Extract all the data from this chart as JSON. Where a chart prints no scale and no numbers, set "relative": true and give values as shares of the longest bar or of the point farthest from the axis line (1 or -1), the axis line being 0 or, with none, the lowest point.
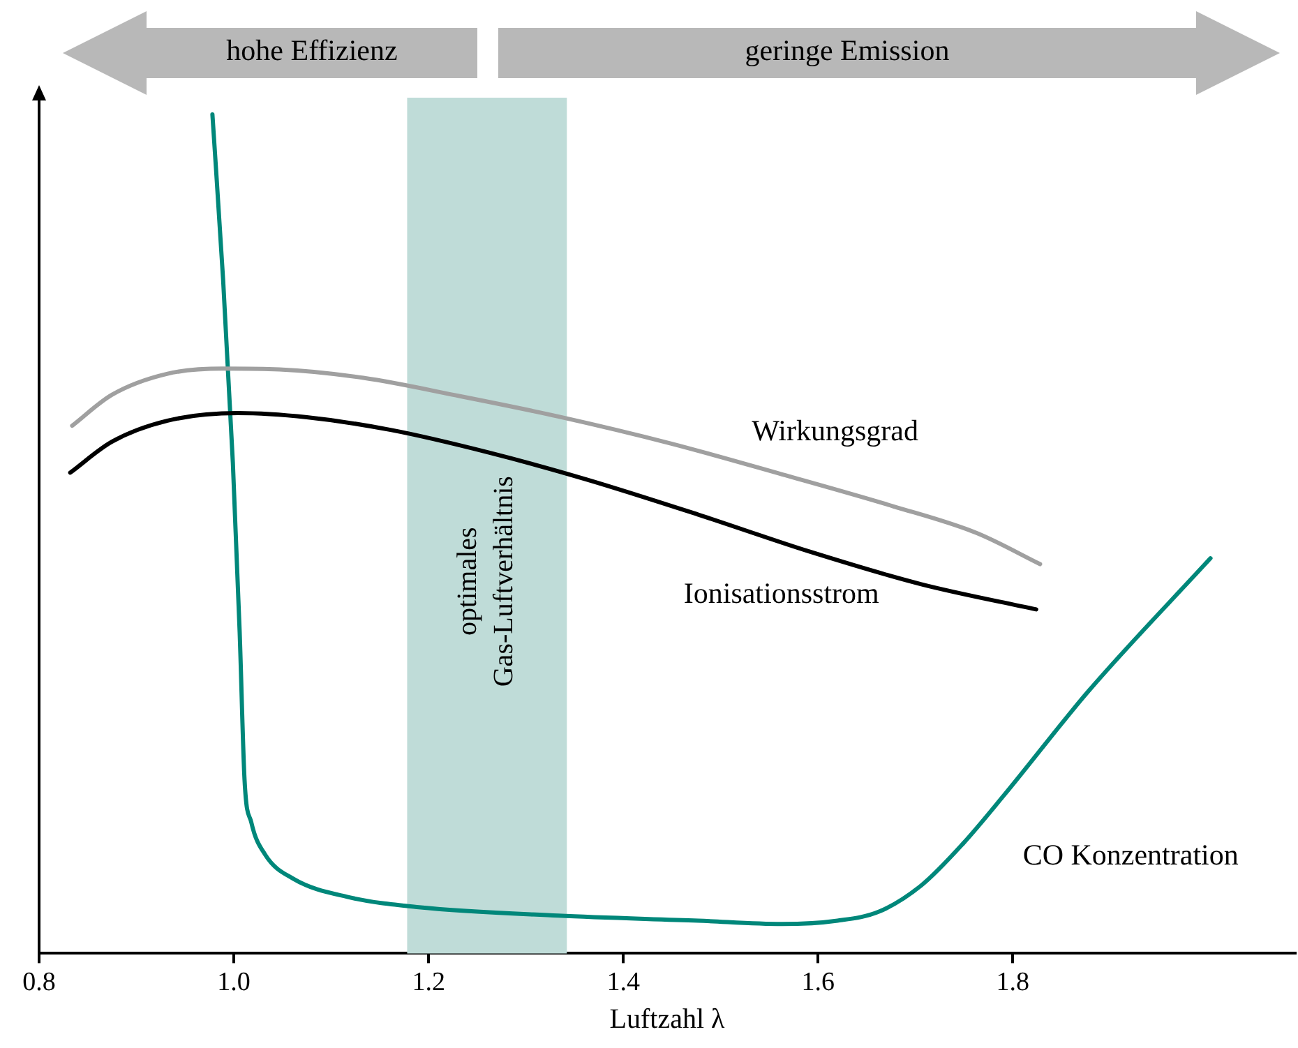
{
  "chart_data": {
    "type": "line",
    "relative": true,
    "xlabel": "Luftzahl λ",
    "xlim": [
      0.8,
      2.09
    ],
    "xticks": [
      0.8,
      {
        "value": 1,
        "label": "1.0"
      },
      1.2,
      1.4,
      1.6,
      1.8
    ],
    "tick_labels": "x",
    "grid": false,
    "legend": false,
    "annotations": [
      "hohe Effizienz",
      "geringe Emission"
    ],
    "bands": [
      {
        "axis": "x",
        "from": 1.178,
        "to": 1.342,
        "label": "optimales\nGas-Luftverhältnis",
        "color": "#bfdcd8"
      }
    ],
    "series": [
      {
        "name": "Wirkungsgrad",
        "color": "#a0a0a0",
        "x": [
          0.834,
          0.875,
          0.932,
          0.989,
          1.047,
          1.133,
          1.233,
          1.333,
          1.448,
          1.563,
          1.677,
          1.763,
          1.828
        ],
        "values": [
          0.629,
          0.666,
          0.691,
          0.697,
          0.696,
          0.686,
          0.664,
          0.64,
          0.608,
          0.571,
          0.533,
          0.501,
          0.464
        ]
      },
      {
        "name": "Ionisationsstrom",
        "color": "#000000",
        "x": [
          0.832,
          0.875,
          0.932,
          1.004,
          1.075,
          1.161,
          1.262,
          1.362,
          1.477,
          1.591,
          1.706,
          1.824
        ],
        "values": [
          0.573,
          0.61,
          0.635,
          0.644,
          0.639,
          0.624,
          0.597,
          0.565,
          0.523,
          0.479,
          0.44,
          0.41
        ]
      },
      {
        "name": "CO Konzentration",
        "color": "#00877a",
        "x": [
          0.978,
          0.989,
          0.999,
          1.006,
          1.011,
          1.018,
          1.032,
          1.061,
          1.118,
          1.19,
          1.333,
          1.477,
          1.563,
          1.62,
          1.663,
          1.706,
          1.749,
          1.792,
          1.878,
          2.003
        ],
        "values": [
          1,
          0.803,
          0.585,
          0.383,
          0.207,
          0.156,
          0.118,
          0.089,
          0.067,
          0.055,
          0.045,
          0.039,
          0.035,
          0.039,
          0.05,
          0.081,
          0.131,
          0.19,
          0.313,
          0.471
        ]
      }
    ]
  }
}
